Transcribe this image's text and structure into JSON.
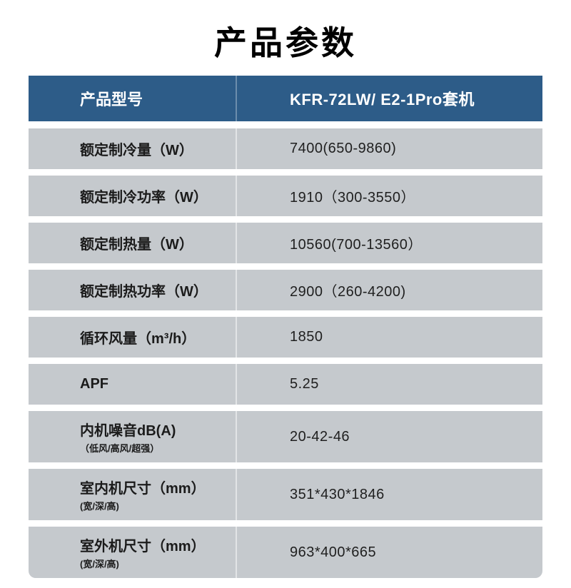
{
  "page": {
    "title": "产品参数"
  },
  "colors": {
    "page_bg": "#ffffff",
    "header_bg": "#2d5c88",
    "header_text": "#ffffff",
    "row_bg": "#c5c9cd",
    "label_text": "#1b1b1b",
    "value_text": "#1f1f1f",
    "title_color": "#000000"
  },
  "table": {
    "header": {
      "label": "产品型号",
      "value": "KFR-72LW/ E2-1Pro套机"
    },
    "rows": [
      {
        "label": "额定制冷量（W）",
        "value": "7400(650-9860)"
      },
      {
        "label": "额定制冷功率（W）",
        "value": "1910（300-3550）"
      },
      {
        "label": "额定制热量（W）",
        "value": "10560(700-13560）"
      },
      {
        "label": "额定制热功率（W）",
        "value": "2900（260-4200)"
      },
      {
        "label": "循环风量（m³/h）",
        "value": "1850"
      },
      {
        "label": "APF",
        "value": "5.25"
      },
      {
        "label": "内机噪音dB(A)",
        "sublabel": "（低风/高风/超强）",
        "value": "20-42-46"
      },
      {
        "label": "室内机尺寸（mm）",
        "sublabel": "(宽/深/高)",
        "value": "351*430*1846"
      },
      {
        "label": "室外机尺寸（mm）",
        "sublabel": "(宽/深/高)",
        "value": "963*400*665"
      }
    ]
  }
}
